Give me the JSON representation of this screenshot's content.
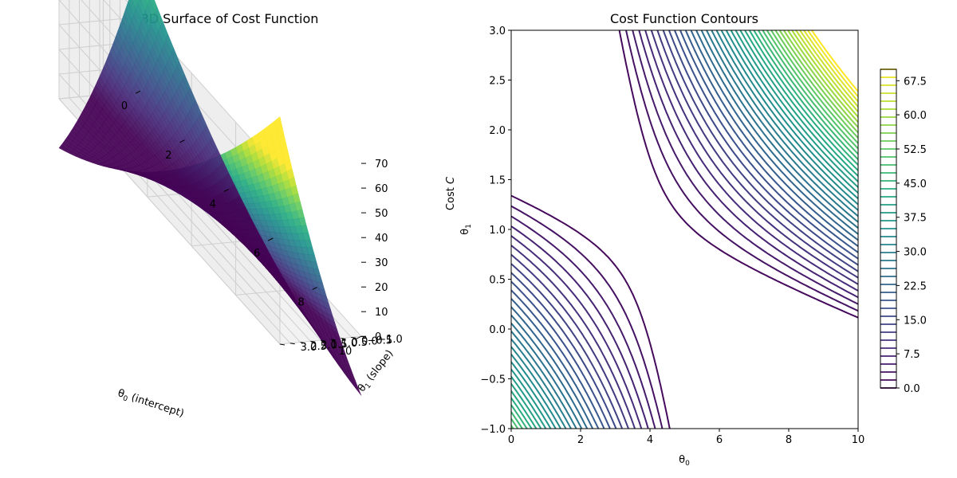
{
  "chart_data": [
    {
      "type": "surface3d",
      "title": "3D Surface of Cost Function",
      "xlabel": "θ0 (intercept)",
      "ylabel": "θ1 (slope)",
      "zlabel": "Cost C",
      "xlim": [
        0,
        10
      ],
      "ylim": [
        -1,
        3
      ],
      "zlim": [
        0,
        70
      ],
      "xticks": [
        "0",
        "2",
        "4",
        "6",
        "8",
        "10"
      ],
      "yticks": [
        "−1.0",
        "−0.5",
        "0.0",
        "0.5",
        "1.0",
        "1.5",
        "2.0",
        "2.5",
        "3.0"
      ],
      "zticks": [
        "0",
        "10",
        "20",
        "30",
        "40",
        "50",
        "60",
        "70"
      ],
      "colormap": "viridis",
      "grid": true,
      "surface_samples": [
        {
          "theta0": 0,
          "theta1": -1,
          "cost": 20
        },
        {
          "theta0": 0,
          "theta1": 3,
          "cost": 20
        },
        {
          "theta0": 10,
          "theta1": -1,
          "cost": 20
        },
        {
          "theta0": 10,
          "theta1": 3,
          "cost": 70
        },
        {
          "theta0": 3.9,
          "theta1": 0.9,
          "cost": 0
        }
      ]
    },
    {
      "type": "contour",
      "title": "Cost Function Contours",
      "xlabel": "θ0",
      "ylabel": "θ1",
      "xlim": [
        0,
        10
      ],
      "ylim": [
        -1,
        3
      ],
      "xticks": [
        "0",
        "2",
        "4",
        "6",
        "8",
        "10"
      ],
      "yticks": [
        "−1.0",
        "−0.5",
        "0.0",
        "0.5",
        "1.0",
        "1.5",
        "2.0",
        "2.5",
        "3.0"
      ],
      "minimum": {
        "theta0": 3.9,
        "theta1": 0.9,
        "cost": 0
      },
      "levels": {
        "min": 0,
        "max": 70,
        "step": 1.75
      },
      "colormap": "viridis",
      "colorbar": {
        "ticks": [
          "0.0",
          "7.5",
          "15.0",
          "22.5",
          "30.0",
          "37.5",
          "45.0",
          "52.5",
          "60.0",
          "67.5"
        ],
        "range": [
          0,
          70
        ]
      }
    }
  ]
}
